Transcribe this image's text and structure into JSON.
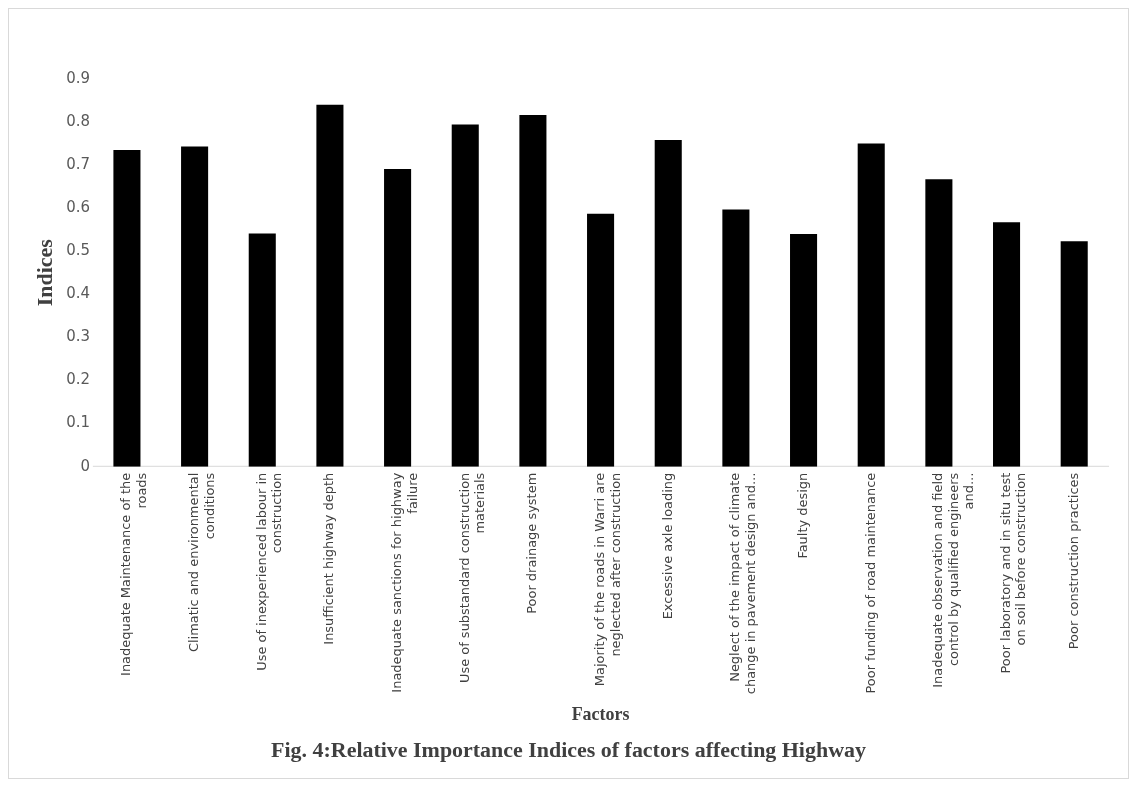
{
  "chart_data": {
    "type": "bar",
    "title": "Fig. 4:Relative Importance Indices of factors affecting Highway",
    "xlabel": "Factors",
    "ylabel": "Indices",
    "categories": [
      "Inadequate Maintenance of the roads",
      "Climatic and environmental conditions",
      "Use of inexperienced labour in construction",
      "Insufficient highway depth",
      "Inadequate sanctions for highway failure",
      "Use of substandard construction materials",
      "Poor drainage system",
      "Majority of the roads in Warri are neglected after construction",
      "Excessive axle loading",
      "Neglect of the impact of climate change in pavement design and...",
      "Faulty design",
      "Poor funding of road maintenance",
      "Inadequate observation and field control by qualified engineers and...",
      "Poor laboratory and in situ test on soil before construction",
      "Poor construction practices"
    ],
    "values": [
      0.735,
      0.743,
      0.541,
      0.84,
      0.691,
      0.794,
      0.816,
      0.587,
      0.758,
      0.597,
      0.54,
      0.75,
      0.667,
      0.567,
      0.523
    ],
    "color": "#000000",
    "ylim": [
      0,
      0.9
    ],
    "yticks": [
      0,
      0.1,
      0.2,
      0.3,
      0.4,
      0.5,
      0.6,
      0.7,
      0.8,
      0.9
    ],
    "grid": false,
    "legend": false
  }
}
